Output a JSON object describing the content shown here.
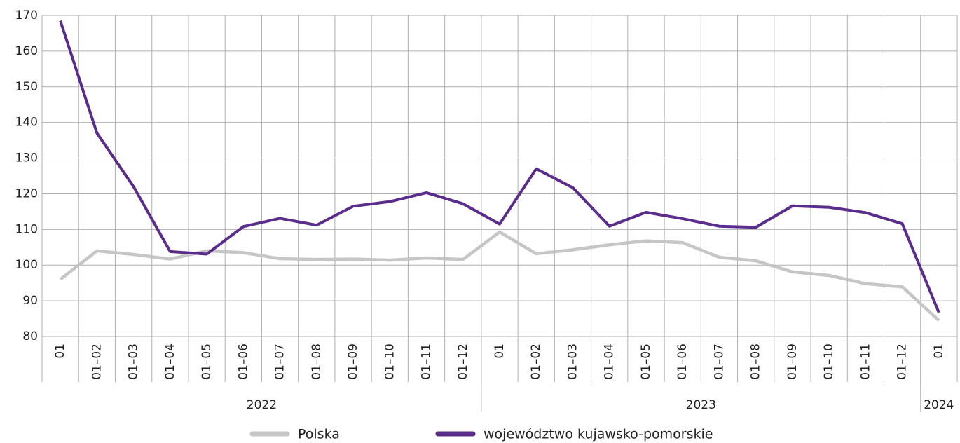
{
  "chart_data": {
    "type": "line",
    "categories": [
      "01",
      "01–02",
      "01–03",
      "01–04",
      "01–05",
      "01–06",
      "01–07",
      "01–08",
      "01–09",
      "01–10",
      "01–11",
      "01–12",
      "01",
      "01–02",
      "01–03",
      "01–04",
      "01–05",
      "01–06",
      "01–07",
      "01–08",
      "01–09",
      "01–10",
      "01–11",
      "01–12",
      "01"
    ],
    "x_groups": [
      {
        "label": "2022",
        "span": 12
      },
      {
        "label": "2023",
        "span": 12
      },
      {
        "label": "2024",
        "span": 1
      }
    ],
    "series": [
      {
        "name": "Polska",
        "color": "#c6c6c6",
        "values": [
          96,
          104,
          103,
          101.7,
          104,
          103.5,
          101.8,
          101.6,
          101.7,
          101.4,
          102,
          101.6,
          109.3,
          103.2,
          104.3,
          105.7,
          106.8,
          106.3,
          102.2,
          101.2,
          98.1,
          97.1,
          94.8,
          93.9,
          84.5
        ]
      },
      {
        "name": "województwo kujawsko-pomorskie",
        "color": "#5a2d8c",
        "values": [
          168.5,
          137,
          122,
          103.8,
          103.1,
          110.8,
          113.1,
          111.2,
          116.5,
          117.8,
          120.3,
          117.2,
          111.5,
          127,
          121.7,
          110.9,
          114.8,
          113,
          110.9,
          110.6,
          116.6,
          116.2,
          114.7,
          111.6,
          86.7
        ]
      }
    ],
    "ylim": [
      80,
      170
    ],
    "yticks": [
      80,
      90,
      100,
      110,
      120,
      130,
      140,
      150,
      160,
      170
    ],
    "grid": true,
    "legend": "bottom"
  }
}
